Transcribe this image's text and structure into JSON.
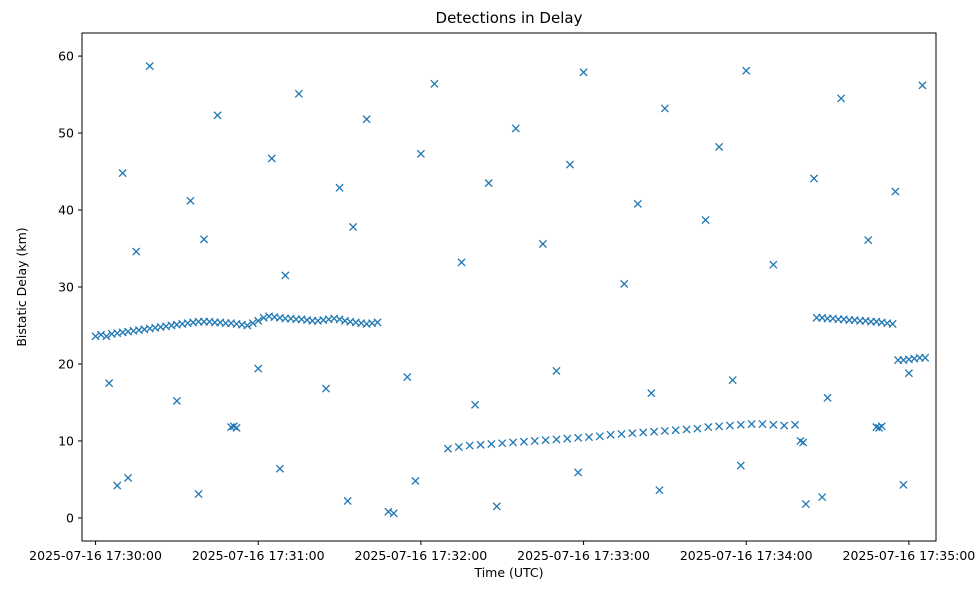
{
  "chart_data": {
    "type": "scatter",
    "title": "Detections in Delay",
    "xlabel": "Time (UTC)",
    "ylabel": "Bistatic Delay (km)",
    "xlim": [
      "2025-07-16 17:29:55",
      "2025-07-16 17:35:10"
    ],
    "ylim": [
      -3,
      63
    ],
    "x_ticks": [
      "2025-07-16 17:30:00",
      "2025-07-16 17:31:00",
      "2025-07-16 17:32:00",
      "2025-07-16 17:33:00",
      "2025-07-16 17:34:00",
      "2025-07-16 17:35:00"
    ],
    "y_ticks": [
      0,
      10,
      20,
      30,
      40,
      50,
      60
    ],
    "marker": "x",
    "grid": false,
    "color": "#1f77b4",
    "series": [
      {
        "points": [
          [
            "2025-07-16 17:30:00",
            23.6
          ],
          [
            "2025-07-16 17:30:02",
            23.8
          ],
          [
            "2025-07-16 17:30:04",
            23.6
          ],
          [
            "2025-07-16 17:30:06",
            23.9
          ],
          [
            "2025-07-16 17:30:08",
            24.0
          ],
          [
            "2025-07-16 17:30:10",
            24.1
          ],
          [
            "2025-07-16 17:30:12",
            24.2
          ],
          [
            "2025-07-16 17:30:14",
            24.3
          ],
          [
            "2025-07-16 17:30:16",
            24.4
          ],
          [
            "2025-07-16 17:30:18",
            24.5
          ],
          [
            "2025-07-16 17:30:20",
            24.6
          ],
          [
            "2025-07-16 17:30:22",
            24.7
          ],
          [
            "2025-07-16 17:30:24",
            24.8
          ],
          [
            "2025-07-16 17:30:26",
            24.9
          ],
          [
            "2025-07-16 17:30:28",
            25.0
          ],
          [
            "2025-07-16 17:30:30",
            25.1
          ],
          [
            "2025-07-16 17:30:32",
            25.2
          ],
          [
            "2025-07-16 17:30:34",
            25.3
          ],
          [
            "2025-07-16 17:30:36",
            25.4
          ],
          [
            "2025-07-16 17:30:38",
            25.5
          ],
          [
            "2025-07-16 17:30:40",
            25.5
          ],
          [
            "2025-07-16 17:30:42",
            25.5
          ],
          [
            "2025-07-16 17:30:44",
            25.4
          ],
          [
            "2025-07-16 17:30:46",
            25.4
          ],
          [
            "2025-07-16 17:30:48",
            25.3
          ],
          [
            "2025-07-16 17:30:50",
            25.3
          ],
          [
            "2025-07-16 17:30:52",
            25.2
          ],
          [
            "2025-07-16 17:30:54",
            25.1
          ],
          [
            "2025-07-16 17:30:56",
            25.0
          ],
          [
            "2025-07-16 17:30:58",
            25.3
          ],
          [
            "2025-07-16 17:31:00",
            25.6
          ],
          [
            "2025-07-16 17:31:02",
            26.0
          ],
          [
            "2025-07-16 17:31:04",
            26.2
          ],
          [
            "2025-07-16 17:31:06",
            26.1
          ],
          [
            "2025-07-16 17:31:08",
            26.0
          ],
          [
            "2025-07-16 17:31:10",
            25.9
          ],
          [
            "2025-07-16 17:31:12",
            25.9
          ],
          [
            "2025-07-16 17:31:14",
            25.8
          ],
          [
            "2025-07-16 17:31:16",
            25.8
          ],
          [
            "2025-07-16 17:31:18",
            25.7
          ],
          [
            "2025-07-16 17:31:20",
            25.6
          ],
          [
            "2025-07-16 17:31:22",
            25.6
          ],
          [
            "2025-07-16 17:31:24",
            25.7
          ],
          [
            "2025-07-16 17:31:26",
            25.8
          ],
          [
            "2025-07-16 17:31:28",
            25.9
          ],
          [
            "2025-07-16 17:31:30",
            25.8
          ],
          [
            "2025-07-16 17:31:32",
            25.6
          ],
          [
            "2025-07-16 17:31:34",
            25.5
          ],
          [
            "2025-07-16 17:31:36",
            25.4
          ],
          [
            "2025-07-16 17:31:38",
            25.3
          ],
          [
            "2025-07-16 17:31:40",
            25.2
          ],
          [
            "2025-07-16 17:31:42",
            25.3
          ],
          [
            "2025-07-16 17:31:44",
            25.4
          ],
          [
            "2025-07-16 17:32:10",
            9.0
          ],
          [
            "2025-07-16 17:32:14",
            9.2
          ],
          [
            "2025-07-16 17:32:18",
            9.4
          ],
          [
            "2025-07-16 17:32:22",
            9.5
          ],
          [
            "2025-07-16 17:32:26",
            9.6
          ],
          [
            "2025-07-16 17:32:30",
            9.7
          ],
          [
            "2025-07-16 17:32:34",
            9.8
          ],
          [
            "2025-07-16 17:32:38",
            9.9
          ],
          [
            "2025-07-16 17:32:42",
            10.0
          ],
          [
            "2025-07-16 17:32:46",
            10.1
          ],
          [
            "2025-07-16 17:32:50",
            10.2
          ],
          [
            "2025-07-16 17:32:54",
            10.3
          ],
          [
            "2025-07-16 17:32:58",
            10.4
          ],
          [
            "2025-07-16 17:33:02",
            10.5
          ],
          [
            "2025-07-16 17:33:06",
            10.6
          ],
          [
            "2025-07-16 17:33:10",
            10.8
          ],
          [
            "2025-07-16 17:33:14",
            10.9
          ],
          [
            "2025-07-16 17:33:18",
            11.0
          ],
          [
            "2025-07-16 17:33:22",
            11.1
          ],
          [
            "2025-07-16 17:33:26",
            11.2
          ],
          [
            "2025-07-16 17:33:30",
            11.3
          ],
          [
            "2025-07-16 17:33:34",
            11.4
          ],
          [
            "2025-07-16 17:33:38",
            11.5
          ],
          [
            "2025-07-16 17:33:42",
            11.6
          ],
          [
            "2025-07-16 17:33:46",
            11.8
          ],
          [
            "2025-07-16 17:33:50",
            11.9
          ],
          [
            "2025-07-16 17:33:54",
            12.0
          ],
          [
            "2025-07-16 17:33:58",
            12.1
          ],
          [
            "2025-07-16 17:34:02",
            12.2
          ],
          [
            "2025-07-16 17:34:06",
            12.2
          ],
          [
            "2025-07-16 17:34:10",
            12.1
          ],
          [
            "2025-07-16 17:34:14",
            12.0
          ],
          [
            "2025-07-16 17:34:18",
            12.1
          ],
          [
            "2025-07-16 17:34:26",
            26.0
          ],
          [
            "2025-07-16 17:34:28",
            26.0
          ],
          [
            "2025-07-16 17:34:30",
            25.9
          ],
          [
            "2025-07-16 17:34:32",
            25.9
          ],
          [
            "2025-07-16 17:34:34",
            25.8
          ],
          [
            "2025-07-16 17:34:36",
            25.8
          ],
          [
            "2025-07-16 17:34:38",
            25.7
          ],
          [
            "2025-07-16 17:34:40",
            25.7
          ],
          [
            "2025-07-16 17:34:42",
            25.6
          ],
          [
            "2025-07-16 17:34:44",
            25.6
          ],
          [
            "2025-07-16 17:34:46",
            25.5
          ],
          [
            "2025-07-16 17:34:48",
            25.5
          ],
          [
            "2025-07-16 17:34:50",
            25.4
          ],
          [
            "2025-07-16 17:34:52",
            25.3
          ],
          [
            "2025-07-16 17:34:54",
            25.2
          ],
          [
            "2025-07-16 17:34:56",
            20.5
          ],
          [
            "2025-07-16 17:34:58",
            20.5
          ],
          [
            "2025-07-16 17:35:00",
            20.6
          ],
          [
            "2025-07-16 17:35:02",
            20.7
          ],
          [
            "2025-07-16 17:35:04",
            20.8
          ],
          [
            "2025-07-16 17:35:06",
            20.8
          ],
          [
            "2025-07-16 17:30:50",
            11.8
          ],
          [
            "2025-07-16 17:30:51",
            11.9
          ],
          [
            "2025-07-16 17:30:52",
            11.7
          ],
          [
            "2025-07-16 17:34:48",
            11.8
          ],
          [
            "2025-07-16 17:34:49",
            11.7
          ],
          [
            "2025-07-16 17:34:50",
            11.9
          ],
          [
            "2025-07-16 17:34:20",
            10.0
          ],
          [
            "2025-07-16 17:34:21",
            9.8
          ],
          [
            "2025-07-16 17:30:20",
            58.7
          ],
          [
            "2025-07-16 17:30:45",
            52.3
          ],
          [
            "2025-07-16 17:31:15",
            55.1
          ],
          [
            "2025-07-16 17:31:40",
            51.8
          ],
          [
            "2025-07-16 17:32:05",
            56.4
          ],
          [
            "2025-07-16 17:32:35",
            50.6
          ],
          [
            "2025-07-16 17:33:00",
            57.9
          ],
          [
            "2025-07-16 17:33:30",
            53.2
          ],
          [
            "2025-07-16 17:34:00",
            58.1
          ],
          [
            "2025-07-16 17:34:35",
            54.5
          ],
          [
            "2025-07-16 17:35:05",
            56.2
          ],
          [
            "2025-07-16 17:30:10",
            44.8
          ],
          [
            "2025-07-16 17:30:35",
            41.2
          ],
          [
            "2025-07-16 17:31:05",
            46.7
          ],
          [
            "2025-07-16 17:31:30",
            42.9
          ],
          [
            "2025-07-16 17:32:00",
            47.3
          ],
          [
            "2025-07-16 17:32:25",
            43.5
          ],
          [
            "2025-07-16 17:32:55",
            45.9
          ],
          [
            "2025-07-16 17:33:20",
            40.8
          ],
          [
            "2025-07-16 17:33:50",
            48.2
          ],
          [
            "2025-07-16 17:34:25",
            44.1
          ],
          [
            "2025-07-16 17:34:55",
            42.4
          ],
          [
            "2025-07-16 17:30:15",
            34.6
          ],
          [
            "2025-07-16 17:30:40",
            36.2
          ],
          [
            "2025-07-16 17:31:10",
            31.5
          ],
          [
            "2025-07-16 17:31:35",
            37.8
          ],
          [
            "2025-07-16 17:32:15",
            33.2
          ],
          [
            "2025-07-16 17:32:45",
            35.6
          ],
          [
            "2025-07-16 17:33:15",
            30.4
          ],
          [
            "2025-07-16 17:33:45",
            38.7
          ],
          [
            "2025-07-16 17:34:10",
            32.9
          ],
          [
            "2025-07-16 17:34:45",
            36.1
          ],
          [
            "2025-07-16 17:30:05",
            17.5
          ],
          [
            "2025-07-16 17:30:30",
            15.2
          ],
          [
            "2025-07-16 17:31:00",
            19.4
          ],
          [
            "2025-07-16 17:31:25",
            16.8
          ],
          [
            "2025-07-16 17:31:55",
            18.3
          ],
          [
            "2025-07-16 17:32:20",
            14.7
          ],
          [
            "2025-07-16 17:32:50",
            19.1
          ],
          [
            "2025-07-16 17:33:25",
            16.2
          ],
          [
            "2025-07-16 17:33:55",
            17.9
          ],
          [
            "2025-07-16 17:34:30",
            15.6
          ],
          [
            "2025-07-16 17:35:00",
            18.8
          ],
          [
            "2025-07-16 17:30:12",
            5.2
          ],
          [
            "2025-07-16 17:30:38",
            3.1
          ],
          [
            "2025-07-16 17:31:08",
            6.4
          ],
          [
            "2025-07-16 17:31:33",
            2.2
          ],
          [
            "2025-07-16 17:31:58",
            4.8
          ],
          [
            "2025-07-16 17:32:28",
            1.5
          ],
          [
            "2025-07-16 17:32:58",
            5.9
          ],
          [
            "2025-07-16 17:33:28",
            3.6
          ],
          [
            "2025-07-16 17:33:58",
            6.8
          ],
          [
            "2025-07-16 17:34:28",
            2.7
          ],
          [
            "2025-07-16 17:34:58",
            4.3
          ],
          [
            "2025-07-16 17:31:48",
            0.8
          ],
          [
            "2025-07-16 17:31:50",
            0.6
          ],
          [
            "2025-07-16 17:30:08",
            4.2
          ],
          [
            "2025-07-16 17:34:22",
            1.8
          ]
        ]
      }
    ]
  }
}
